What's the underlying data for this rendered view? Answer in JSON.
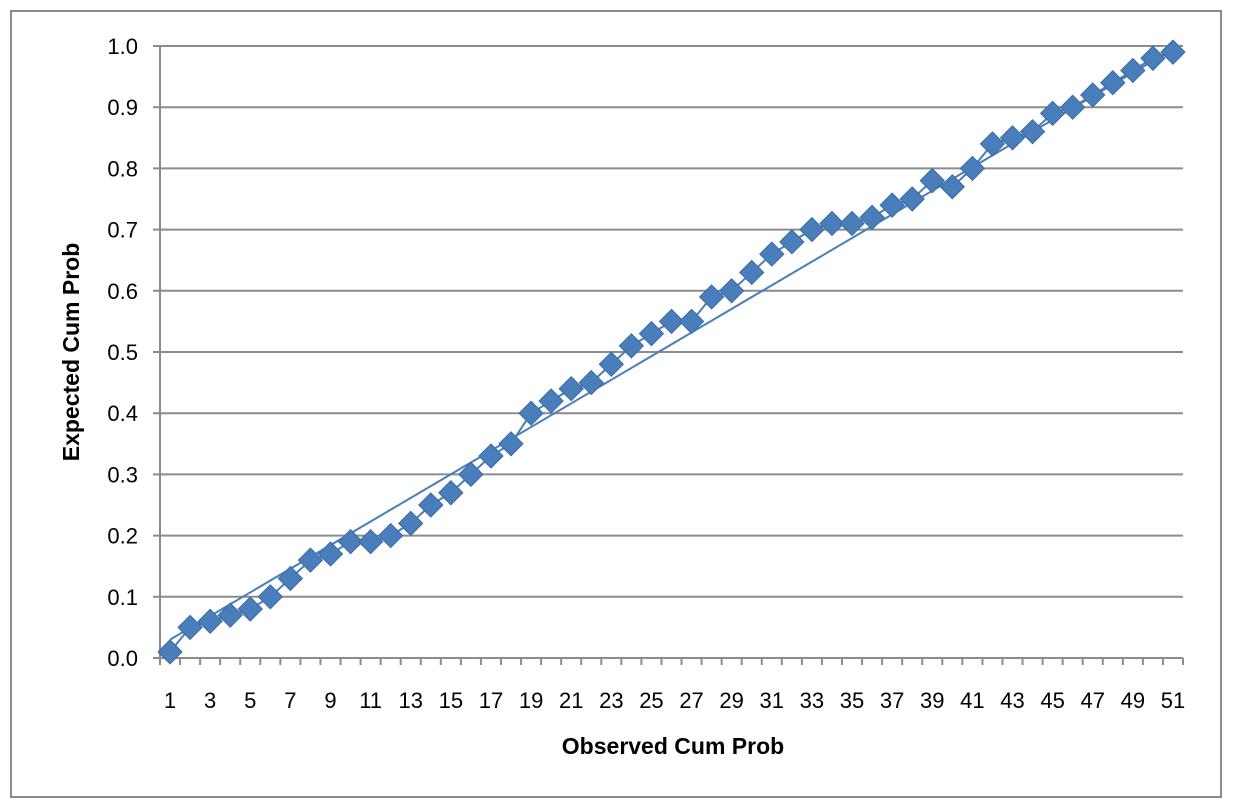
{
  "chart_data": {
    "type": "scatter",
    "title": "",
    "xlabel": "Observed  Cum Prob",
    "ylabel": "Expected Cum Prob",
    "x": [
      1,
      2,
      3,
      4,
      5,
      6,
      7,
      8,
      9,
      10,
      11,
      12,
      13,
      14,
      15,
      16,
      17,
      18,
      19,
      20,
      21,
      22,
      23,
      24,
      25,
      26,
      27,
      28,
      29,
      30,
      31,
      32,
      33,
      34,
      35,
      36,
      37,
      38,
      39,
      40,
      41,
      42,
      43,
      44,
      45,
      46,
      47,
      48,
      49,
      50,
      51
    ],
    "x_tick_labels": [
      "1",
      "3",
      "5",
      "7",
      "9",
      "11",
      "13",
      "15",
      "17",
      "19",
      "21",
      "23",
      "25",
      "27",
      "29",
      "31",
      "33",
      "35",
      "37",
      "39",
      "41",
      "43",
      "45",
      "47",
      "49",
      "51"
    ],
    "y_tick_labels": [
      "0.0",
      "0.1",
      "0.2",
      "0.3",
      "0.4",
      "0.5",
      "0.6",
      "0.7",
      "0.8",
      "0.9",
      "1.0"
    ],
    "ylim": [
      0,
      1
    ],
    "grid": "horizontal",
    "legend": "none",
    "series": [
      {
        "marker": "diamond",
        "color": "#4a7ebb",
        "values": [
          0.01,
          0.05,
          0.06,
          0.07,
          0.08,
          0.1,
          0.13,
          0.16,
          0.17,
          0.19,
          0.19,
          0.2,
          0.22,
          0.25,
          0.27,
          0.3,
          0.33,
          0.35,
          0.4,
          0.42,
          0.44,
          0.45,
          0.48,
          0.51,
          0.53,
          0.55,
          0.55,
          0.59,
          0.6,
          0.63,
          0.66,
          0.68,
          0.7,
          0.71,
          0.71,
          0.72,
          0.74,
          0.75,
          0.78,
          0.77,
          0.8,
          0.84,
          0.85,
          0.86,
          0.89,
          0.9,
          0.92,
          0.94,
          0.96,
          0.98,
          0.99
        ]
      }
    ],
    "trend_line": {
      "color": "#4a7ebb",
      "start": [
        1,
        0.03
      ],
      "end": [
        51,
        0.995
      ]
    }
  }
}
